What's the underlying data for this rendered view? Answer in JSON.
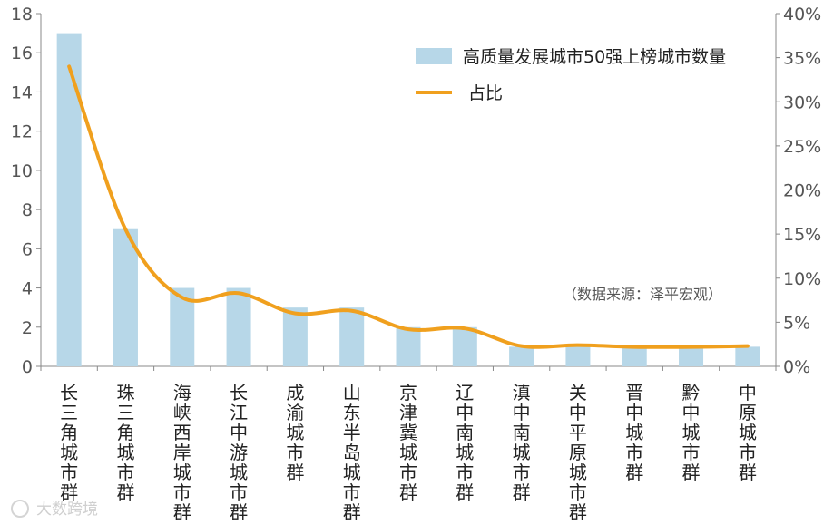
{
  "chart_data": {
    "type": "bar+line",
    "categories": [
      "长三角城市群",
      "珠三角城市群",
      "海峡西岸城市群",
      "长江中游城市群",
      "成渝城市群",
      "山东半岛城市群",
      "京津冀城市群",
      "辽中南城市群",
      "滇中南城市群",
      "关中平原城市群",
      "晋中城市群",
      "黔中城市群",
      "中原城市群"
    ],
    "series": [
      {
        "name": "高质量发展城市50强上榜城市数量",
        "kind": "bar",
        "axis": "left",
        "values": [
          17,
          7,
          4,
          4,
          3,
          3,
          2,
          2,
          1,
          1,
          1,
          1,
          1
        ]
      },
      {
        "name": "占比",
        "kind": "line",
        "axis": "right",
        "values": [
          34,
          15.5,
          7.8,
          8.3,
          6.0,
          6.3,
          4.2,
          4.3,
          2.3,
          2.4,
          2.2,
          2.2,
          2.3
        ]
      }
    ],
    "ylim_left": [
      0,
      18
    ],
    "ylim_right": [
      0,
      40
    ],
    "yticks_left": [
      "0",
      "2",
      "4",
      "6",
      "8",
      "10",
      "12",
      "14",
      "16",
      "18"
    ],
    "yticks_right": [
      "0%",
      "5%",
      "10%",
      "15%",
      "20%",
      "25%",
      "30%",
      "35%",
      "40%"
    ],
    "legend_position": "top-right",
    "colors": {
      "bar": "#b7d7e8",
      "line": "#f0a01e",
      "axis": "#888888"
    },
    "source_note": "（数据来源：泽平宏观）"
  },
  "watermark": "大数跨境"
}
